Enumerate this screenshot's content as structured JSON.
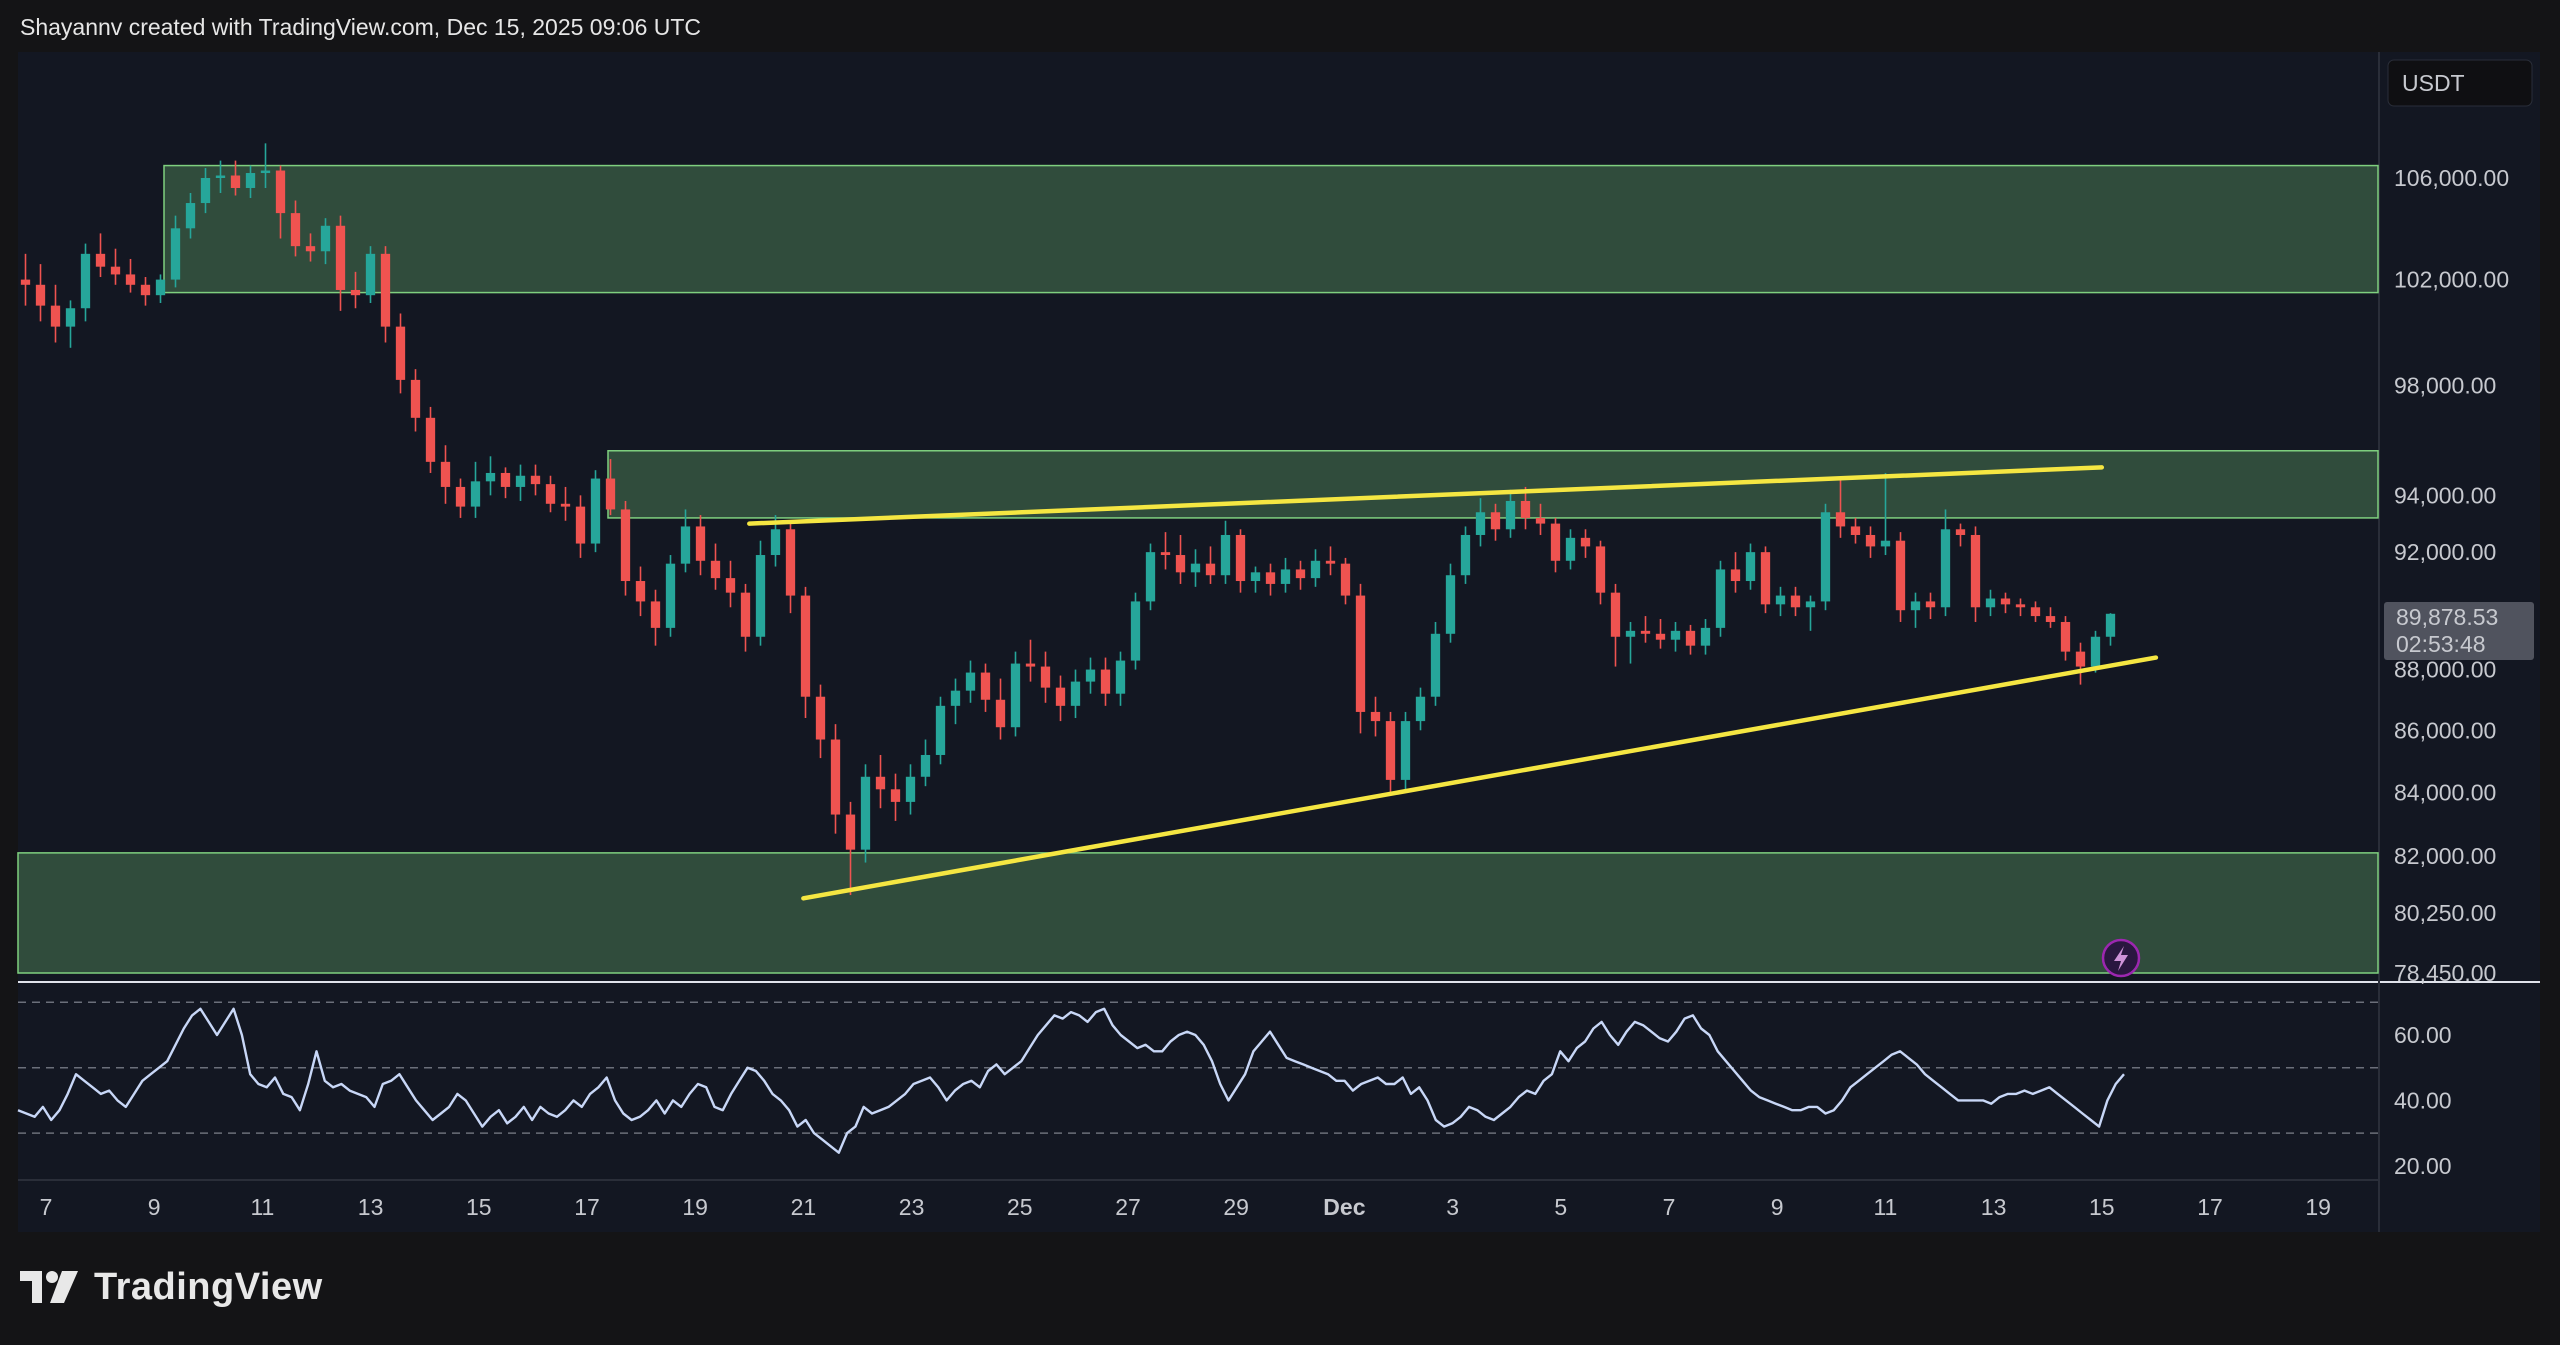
{
  "header": {
    "caption": "Shayannv created with TradingView.com, Dec 15, 2025 09:06 UTC"
  },
  "branding": {
    "name": "TradingView"
  },
  "currency_button": {
    "label": "USDT"
  },
  "price_tag": {
    "price": "89,878.53",
    "countdown": "02:53:48"
  },
  "colors": {
    "background": "#131722",
    "zone_fill": "#33513f",
    "zone_border": "#7fd07f",
    "up": "#26a69a",
    "down": "#ef5350",
    "trendline": "#f5e642",
    "rsi_line": "#c8d7f7",
    "alert_icon": "#9c27b0"
  },
  "icons": {
    "alert": "lightning-icon",
    "logo": "tradingview-logo-icon"
  },
  "chart_data": {
    "type": "candlestick",
    "title": "",
    "xlabel": "",
    "ylabel": "",
    "grid": false,
    "price_axis": {
      "scale": "log",
      "ticks": [
        "106,000.00",
        "102,000.00",
        "98,000.00",
        "94,000.00",
        "92,000.00",
        "88,000.00",
        "86,000.00",
        "84,000.00",
        "82,000.00",
        "80,250.00",
        "78,450.00"
      ]
    },
    "x_axis": {
      "ticks": [
        "7",
        "9",
        "11",
        "13",
        "15",
        "17",
        "19",
        "21",
        "23",
        "25",
        "27",
        "29",
        "Dec",
        "3",
        "5",
        "7",
        "9",
        "11",
        "13",
        "15",
        "17",
        "19"
      ]
    },
    "zones": [
      {
        "low": 101500,
        "high": 106500
      },
      {
        "low": 93200,
        "high": 95600
      },
      {
        "low": 78450,
        "high": 82100
      }
    ],
    "trendlines": [
      {
        "name": "upper",
        "from": {
          "date": "Nov 20",
          "price": 93000
        },
        "to": {
          "date": "Dec 15",
          "price": 95000
        }
      },
      {
        "name": "lower",
        "from": {
          "date": "Nov 21",
          "price": 80700
        },
        "to": {
          "date": "Dec 16",
          "price": 88400
        }
      }
    ],
    "candles": [
      [
        102000,
        103000,
        101000,
        101800
      ],
      [
        101800,
        102600,
        100400,
        101000
      ],
      [
        101000,
        101800,
        99600,
        100200
      ],
      [
        100200,
        101200,
        99400,
        100900
      ],
      [
        100900,
        103400,
        100400,
        103000
      ],
      [
        103000,
        103800,
        102100,
        102500
      ],
      [
        102500,
        103200,
        101800,
        102200
      ],
      [
        102200,
        102800,
        101500,
        101800
      ],
      [
        101800,
        102100,
        101000,
        101400
      ],
      [
        101400,
        102200,
        101100,
        102000
      ],
      [
        102000,
        104500,
        101700,
        104000
      ],
      [
        104000,
        105400,
        103600,
        105000
      ],
      [
        105000,
        106400,
        104600,
        106000
      ],
      [
        106000,
        106700,
        105400,
        106100
      ],
      [
        106100,
        106700,
        105300,
        105600
      ],
      [
        105600,
        106500,
        105200,
        106200
      ],
      [
        106200,
        107400,
        105600,
        106300
      ],
      [
        106300,
        106500,
        103600,
        104600
      ],
      [
        104600,
        105100,
        102900,
        103300
      ],
      [
        103300,
        103800,
        102700,
        103100
      ],
      [
        103100,
        104400,
        102600,
        104100
      ],
      [
        104100,
        104500,
        100800,
        101600
      ],
      [
        101600,
        102300,
        100900,
        101400
      ],
      [
        101400,
        103300,
        101100,
        103000
      ],
      [
        103000,
        103300,
        99600,
        100200
      ],
      [
        100200,
        100700,
        97700,
        98200
      ],
      [
        98200,
        98600,
        96300,
        96800
      ],
      [
        96800,
        97200,
        94800,
        95200
      ],
      [
        95200,
        95800,
        93700,
        94300
      ],
      [
        94300,
        94600,
        93200,
        93600
      ],
      [
        93600,
        95200,
        93200,
        94500
      ],
      [
        94500,
        95400,
        94000,
        94800
      ],
      [
        94800,
        95000,
        93900,
        94300
      ],
      [
        94300,
        95100,
        93800,
        94700
      ],
      [
        94700,
        95100,
        94000,
        94400
      ],
      [
        94400,
        94700,
        93400,
        93700
      ],
      [
        93700,
        94300,
        93100,
        93600
      ],
      [
        93600,
        94000,
        91800,
        92300
      ],
      [
        92300,
        94900,
        92000,
        94600
      ],
      [
        94600,
        95300,
        93300,
        93500
      ],
      [
        93500,
        93800,
        90500,
        91000
      ],
      [
        91000,
        91500,
        89800,
        90300
      ],
      [
        90300,
        90700,
        88800,
        89400
      ],
      [
        89400,
        91900,
        89100,
        91600
      ],
      [
        91600,
        93500,
        91300,
        92900
      ],
      [
        92900,
        93300,
        91200,
        91700
      ],
      [
        91700,
        92300,
        90700,
        91100
      ],
      [
        91100,
        91700,
        90100,
        90600
      ],
      [
        90600,
        90900,
        88600,
        89100
      ],
      [
        89100,
        92400,
        88800,
        91900
      ],
      [
        91900,
        93300,
        91500,
        92800
      ],
      [
        92800,
        93100,
        89900,
        90500
      ],
      [
        90500,
        90800,
        86400,
        87100
      ],
      [
        87100,
        87500,
        85100,
        85700
      ],
      [
        85700,
        86200,
        82700,
        83300
      ],
      [
        83300,
        83700,
        80800,
        82200
      ],
      [
        82200,
        84900,
        81800,
        84500
      ],
      [
        84500,
        85200,
        83500,
        84100
      ],
      [
        84100,
        84600,
        83100,
        83700
      ],
      [
        83700,
        84900,
        83300,
        84500
      ],
      [
        84500,
        85700,
        84200,
        85200
      ],
      [
        85200,
        87100,
        84900,
        86800
      ],
      [
        86800,
        87700,
        86200,
        87300
      ],
      [
        87300,
        88300,
        86900,
        87900
      ],
      [
        87900,
        88200,
        86600,
        87000
      ],
      [
        87000,
        87700,
        85700,
        86100
      ],
      [
        86100,
        88600,
        85800,
        88200
      ],
      [
        88200,
        89000,
        87600,
        88100
      ],
      [
        88100,
        88600,
        86900,
        87400
      ],
      [
        87400,
        87800,
        86300,
        86800
      ],
      [
        86800,
        88000,
        86400,
        87600
      ],
      [
        87600,
        88400,
        87200,
        88000
      ],
      [
        88000,
        88400,
        86800,
        87200
      ],
      [
        87200,
        88600,
        86800,
        88300
      ],
      [
        88300,
        90600,
        88000,
        90300
      ],
      [
        90300,
        92300,
        90000,
        92000
      ],
      [
        92000,
        92700,
        91400,
        91900
      ],
      [
        91900,
        92600,
        90900,
        91300
      ],
      [
        91300,
        92100,
        90800,
        91600
      ],
      [
        91600,
        92200,
        90900,
        91200
      ],
      [
        91200,
        93100,
        90900,
        92600
      ],
      [
        92600,
        92800,
        90600,
        91000
      ],
      [
        91000,
        91500,
        90600,
        91300
      ],
      [
        91300,
        91600,
        90500,
        90900
      ],
      [
        90900,
        91800,
        90600,
        91400
      ],
      [
        91400,
        91700,
        90700,
        91100
      ],
      [
        91100,
        92100,
        90800,
        91700
      ],
      [
        91700,
        92200,
        91200,
        91600
      ],
      [
        91600,
        91800,
        90200,
        90500
      ],
      [
        90500,
        90900,
        85900,
        86600
      ],
      [
        86600,
        87100,
        85800,
        86300
      ],
      [
        86300,
        86600,
        83900,
        84400
      ],
      [
        84400,
        86600,
        84100,
        86300
      ],
      [
        86300,
        87400,
        86000,
        87100
      ],
      [
        87100,
        89600,
        86800,
        89200
      ],
      [
        89200,
        91600,
        88900,
        91200
      ],
      [
        91200,
        92900,
        90900,
        92600
      ],
      [
        92600,
        93900,
        92200,
        93400
      ],
      [
        93400,
        93700,
        92400,
        92800
      ],
      [
        92800,
        94200,
        92500,
        93800
      ],
      [
        93800,
        94300,
        92800,
        93200
      ],
      [
        93200,
        93700,
        92600,
        93000
      ],
      [
        93000,
        93200,
        91300,
        91700
      ],
      [
        91700,
        92800,
        91400,
        92500
      ],
      [
        92500,
        92800,
        91800,
        92200
      ],
      [
        92200,
        92400,
        90200,
        90600
      ],
      [
        90600,
        90900,
        88100,
        89100
      ],
      [
        89100,
        89600,
        88200,
        89300
      ],
      [
        89300,
        89800,
        88900,
        89200
      ],
      [
        89200,
        89700,
        88700,
        89000
      ],
      [
        89000,
        89600,
        88600,
        89300
      ],
      [
        89300,
        89500,
        88500,
        88800
      ],
      [
        88800,
        89700,
        88500,
        89400
      ],
      [
        89400,
        91700,
        89100,
        91400
      ],
      [
        91400,
        92000,
        90600,
        91000
      ],
      [
        91000,
        92300,
        90700,
        92000
      ],
      [
        92000,
        92200,
        89900,
        90200
      ],
      [
        90200,
        90800,
        89800,
        90500
      ],
      [
        90500,
        90800,
        89800,
        90100
      ],
      [
        90100,
        90500,
        89300,
        90300
      ],
      [
        90300,
        93700,
        90000,
        93400
      ],
      [
        93400,
        94600,
        92500,
        92900
      ],
      [
        92900,
        93200,
        92300,
        92600
      ],
      [
        92600,
        92900,
        91800,
        92200
      ],
      [
        92200,
        94800,
        91900,
        92400
      ],
      [
        92400,
        92700,
        89600,
        90000
      ],
      [
        90000,
        90600,
        89400,
        90300
      ],
      [
        90300,
        90600,
        89700,
        90100
      ],
      [
        90100,
        93500,
        89800,
        92800
      ],
      [
        92800,
        93000,
        92200,
        92600
      ],
      [
        92600,
        92900,
        89600,
        90100
      ],
      [
        90100,
        90700,
        89800,
        90400
      ],
      [
        90400,
        90600,
        89900,
        90200
      ],
      [
        90200,
        90400,
        89800,
        90100
      ],
      [
        90100,
        90300,
        89600,
        89800
      ],
      [
        89800,
        90100,
        89400,
        89600
      ],
      [
        89600,
        89800,
        88300,
        88600
      ],
      [
        88600,
        88900,
        87500,
        88100
      ],
      [
        88100,
        89300,
        87900,
        89100
      ],
      [
        89100,
        89900,
        88800,
        89878.53
      ]
    ],
    "rsi": {
      "levels": [
        "60.00",
        "40.00",
        "20.00"
      ],
      "bands": [
        70,
        50,
        30
      ],
      "values": [
        37,
        36,
        35,
        38,
        34,
        37,
        42,
        48,
        46,
        44,
        42,
        43,
        40,
        38,
        42,
        46,
        48,
        50,
        52,
        57,
        62,
        66,
        68,
        64,
        60,
        64,
        68,
        60,
        48,
        45,
        44,
        47,
        42,
        41,
        37,
        45,
        55,
        46,
        44,
        45,
        43,
        42,
        41,
        38,
        45,
        46,
        48,
        44,
        40,
        37,
        34,
        36,
        38,
        42,
        40,
        36,
        32,
        35,
        37,
        33,
        35,
        38,
        34,
        38,
        36,
        35,
        37,
        40,
        38,
        42,
        44,
        47,
        40,
        36,
        34,
        35,
        37,
        40,
        36,
        40,
        38,
        42,
        45,
        44,
        38,
        37,
        42,
        46,
        50,
        49,
        46,
        42,
        40,
        37,
        32,
        34,
        30,
        28,
        26,
        24,
        30,
        32,
        38,
        36,
        37,
        38,
        40,
        42,
        45,
        46,
        47,
        44,
        40,
        43,
        45,
        46,
        44,
        49,
        51,
        48,
        50,
        52,
        56,
        60,
        63,
        66,
        65,
        67,
        66,
        64,
        67,
        68,
        63,
        60,
        58,
        56,
        57,
        55,
        55,
        58,
        60,
        61,
        60,
        57,
        52,
        45,
        40,
        44,
        48,
        55,
        58,
        61,
        57,
        53,
        52,
        51,
        50,
        49,
        48,
        46,
        46,
        43,
        45,
        46,
        47,
        45,
        45,
        47,
        42,
        44,
        40,
        34,
        32,
        33,
        35,
        38,
        37,
        35,
        34,
        36,
        38,
        41,
        43,
        42,
        46,
        48,
        55,
        52,
        56,
        58,
        62,
        64,
        60,
        57,
        61,
        64,
        63,
        61,
        59,
        58,
        61,
        65,
        66,
        62,
        60,
        55,
        52,
        49,
        46,
        43,
        41,
        40,
        39,
        38,
        37,
        37,
        38,
        38,
        36,
        37,
        40,
        44,
        46,
        48,
        50,
        52,
        54,
        55,
        53,
        51,
        48,
        46,
        44,
        42,
        40,
        40,
        40,
        40,
        39,
        41,
        42,
        42,
        43,
        42,
        43,
        44,
        42,
        40,
        38,
        36,
        34,
        32,
        40,
        45,
        48
      ]
    }
  }
}
